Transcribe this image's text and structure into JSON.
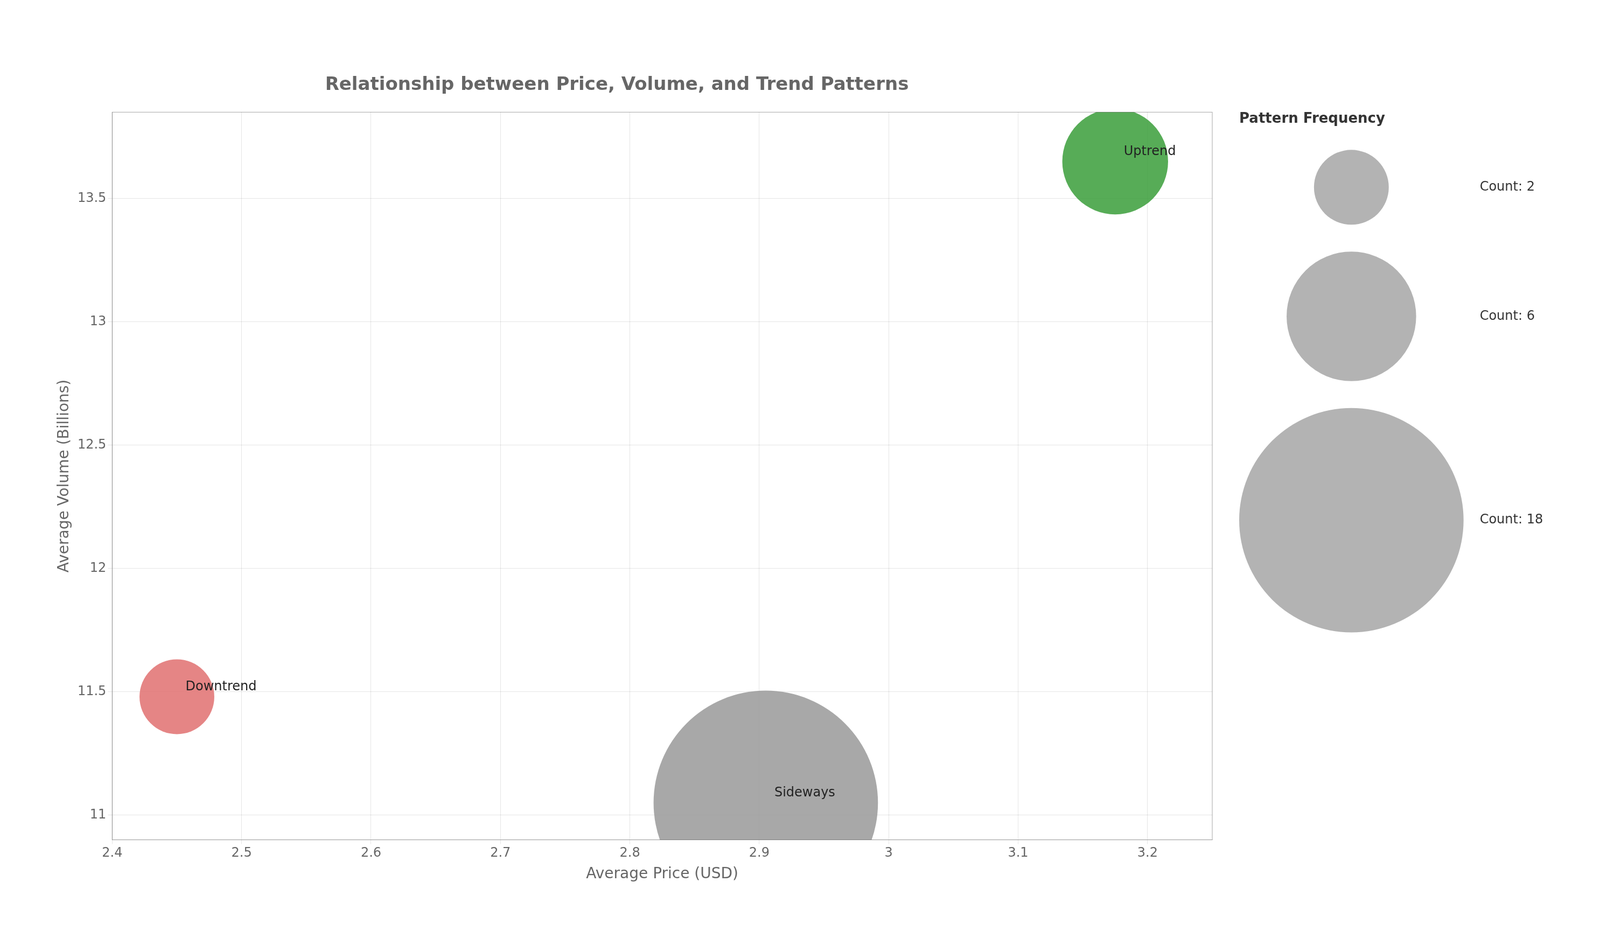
{
  "chart_data": {
    "type": "bubble",
    "title": "Relationship between Price, Volume, and Trend Patterns",
    "xlabel": "Average Price (USD)",
    "ylabel": "Average Volume (Billions)",
    "points": [
      {
        "label": "Uptrend",
        "x": 3.175,
        "y": 13.65,
        "count": 4,
        "color": "#3a9e3a"
      },
      {
        "label": "Downtrend",
        "x": 2.45,
        "y": 11.48,
        "count": 2,
        "color": "#e07070"
      },
      {
        "label": "Sideways",
        "x": 2.905,
        "y": 11.05,
        "count": 18,
        "color": "#999999"
      }
    ],
    "xlim": [
      2.4,
      3.25
    ],
    "ylim": [
      10.9,
      13.85
    ],
    "xticks": [
      2.4,
      2.5,
      2.6,
      2.7,
      2.8,
      2.9,
      3.0,
      3.1,
      3.2
    ],
    "yticks": [
      11,
      11.5,
      12,
      12.5,
      13,
      13.5
    ],
    "grid": true,
    "size_legend": {
      "title": "Pattern Frequency",
      "color": "#999999",
      "entries": [
        {
          "value": 2,
          "label": "Count: 2"
        },
        {
          "value": 6,
          "label": "Count: 6"
        },
        {
          "value": 18,
          "label": "Count: 18"
        }
      ]
    }
  }
}
